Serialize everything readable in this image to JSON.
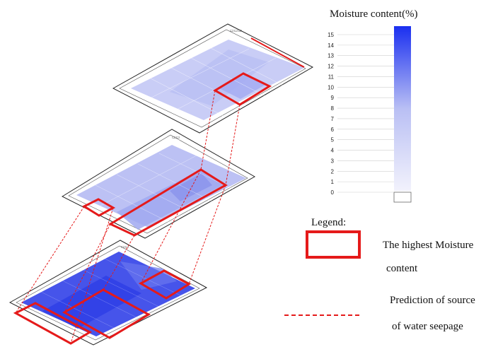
{
  "colorbar": {
    "title": "Moisture content(%)",
    "ticks": [
      "0",
      "1",
      "2",
      "3",
      "4",
      "5",
      "6",
      "7",
      "8",
      "9",
      "10",
      "11",
      "12",
      "13",
      "14",
      "15"
    ],
    "color_min": "#f2f2fc",
    "color_max": "#1a2ff0"
  },
  "legend": {
    "title": "Legend:",
    "box_label_line1": "The highest Moisture",
    "box_label_line2": "content",
    "line_label_line1": "Prediction of source",
    "line_label_line2": "of water seepage",
    "highlight_color": "#e51a1a"
  },
  "floors": [
    {
      "name": "top-floor",
      "fill_level": 0.2
    },
    {
      "name": "middle-floor",
      "fill_level": 0.35
    },
    {
      "name": "bottom-floor",
      "fill_level": 0.8
    }
  ]
}
